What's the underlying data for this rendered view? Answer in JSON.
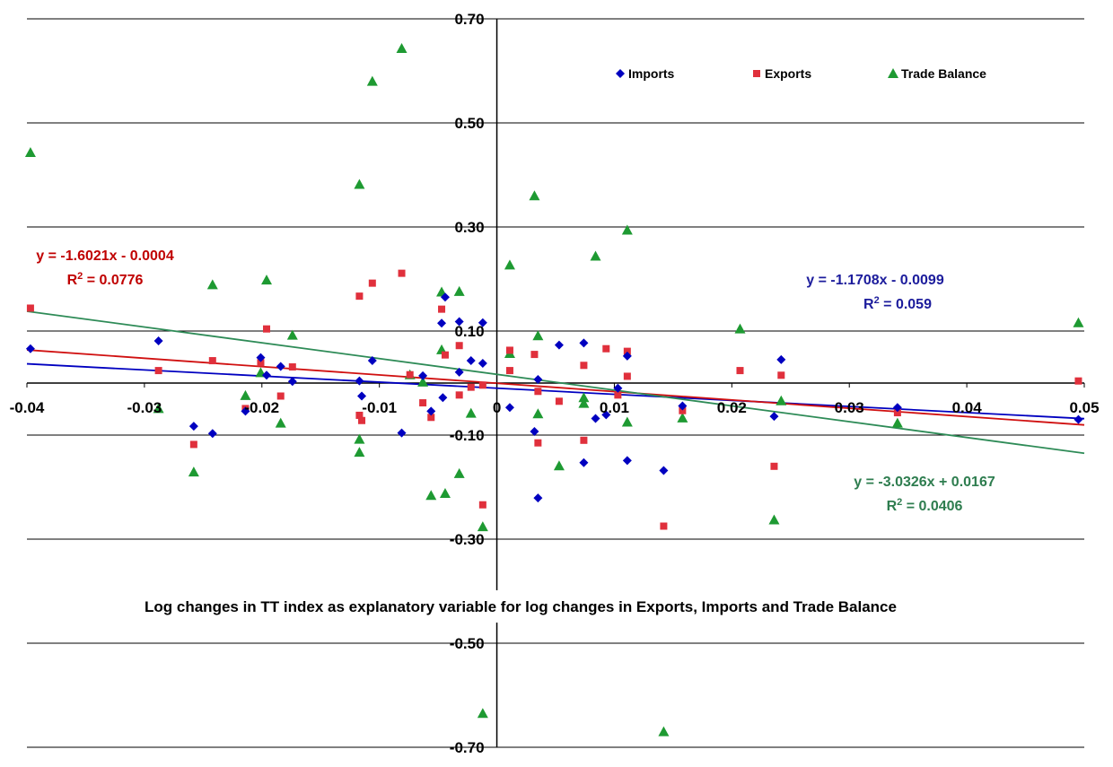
{
  "chart_data": {
    "type": "scatter",
    "title": "Log changes in TT index as explanatory variable for log changes in Exports, Imports and Trade Balance",
    "xlabel": "",
    "ylabel": "",
    "xlim": [
      -0.04,
      0.05
    ],
    "ylim": [
      -0.7,
      0.7
    ],
    "x_ticks": [
      "-0.04",
      "-0.03",
      "-0.02",
      "-0.01",
      "0",
      "0.01",
      "0.02",
      "0.03",
      "0.04",
      "0.05"
    ],
    "y_ticks": [
      "0.70",
      "0.50",
      "0.30",
      "0.10",
      "-0.10",
      "-0.30",
      "-0.50",
      "-0.70"
    ],
    "grid": "horizontal",
    "legend_position": "top-right",
    "series": [
      {
        "name": "Imports",
        "color": "#0000c0",
        "marker": "diamond",
        "points": [
          [
            -0.0397,
            0.066
          ],
          [
            -0.0288,
            0.081
          ],
          [
            -0.0258,
            -0.083
          ],
          [
            -0.0242,
            -0.097
          ],
          [
            -0.0214,
            -0.054
          ],
          [
            -0.0201,
            0.049
          ],
          [
            -0.0196,
            0.015
          ],
          [
            -0.0184,
            0.032
          ],
          [
            -0.0174,
            0.003
          ],
          [
            -0.0117,
            0.004
          ],
          [
            -0.0115,
            -0.025
          ],
          [
            -0.0106,
            0.043
          ],
          [
            -0.0081,
            -0.096
          ],
          [
            -0.0063,
            0.014
          ],
          [
            -0.0056,
            -0.054
          ],
          [
            -0.0047,
            0.115
          ],
          [
            -0.0046,
            -0.028
          ],
          [
            -0.0044,
            0.165
          ],
          [
            -0.0032,
            0.118
          ],
          [
            -0.0032,
            0.021
          ],
          [
            -0.0022,
            0.043
          ],
          [
            -0.0012,
            0.116
          ],
          [
            -0.0012,
            0.038
          ],
          [
            0.0011,
            -0.047
          ],
          [
            0.0032,
            -0.093
          ],
          [
            0.0035,
            -0.221
          ],
          [
            0.0035,
            0.007
          ],
          [
            0.0053,
            0.073
          ],
          [
            0.0074,
            0.077
          ],
          [
            0.0074,
            -0.153
          ],
          [
            0.0084,
            -0.068
          ],
          [
            0.0093,
            -0.061
          ],
          [
            0.0103,
            -0.01
          ],
          [
            0.0111,
            -0.149
          ],
          [
            0.0111,
            0.052
          ],
          [
            0.0142,
            -0.168
          ],
          [
            0.0158,
            -0.044
          ],
          [
            0.0236,
            -0.064
          ],
          [
            0.0242,
            0.045
          ],
          [
            0.0341,
            -0.047
          ],
          [
            0.0495,
            -0.07
          ]
        ],
        "trendline": {
          "equation": "y = -1.1708x - 0.0099",
          "r2_label": "R",
          "r2_sup": "2",
          "r2_value": " = 0.059",
          "slope": -1.1708,
          "intercept": -0.0099
        }
      },
      {
        "name": "Exports",
        "color": "#e0303c",
        "marker": "square",
        "points": [
          [
            -0.0397,
            0.144
          ],
          [
            -0.0288,
            0.024
          ],
          [
            -0.0258,
            -0.118
          ],
          [
            -0.0242,
            0.043
          ],
          [
            -0.0214,
            -0.049
          ],
          [
            -0.0201,
            0.039
          ],
          [
            -0.0196,
            0.104
          ],
          [
            -0.0184,
            -0.025
          ],
          [
            -0.0174,
            0.031
          ],
          [
            -0.0117,
            0.167
          ],
          [
            -0.0117,
            -0.062
          ],
          [
            -0.0115,
            -0.072
          ],
          [
            -0.0106,
            0.192
          ],
          [
            -0.0081,
            0.211
          ],
          [
            -0.0074,
            0.016
          ],
          [
            -0.0063,
            -0.038
          ],
          [
            -0.0056,
            -0.066
          ],
          [
            -0.0047,
            0.142
          ],
          [
            -0.0044,
            0.054
          ],
          [
            -0.0032,
            0.072
          ],
          [
            -0.0032,
            -0.023
          ],
          [
            -0.0022,
            -0.008
          ],
          [
            -0.0012,
            -0.234
          ],
          [
            -0.0012,
            -0.004
          ],
          [
            0.0011,
            0.063
          ],
          [
            0.0011,
            0.024
          ],
          [
            0.0032,
            0.055
          ],
          [
            0.0035,
            -0.115
          ],
          [
            0.0035,
            -0.016
          ],
          [
            0.0053,
            -0.035
          ],
          [
            0.0074,
            -0.11
          ],
          [
            0.0074,
            0.034
          ],
          [
            0.0093,
            0.066
          ],
          [
            0.0103,
            -0.023
          ],
          [
            0.0111,
            0.061
          ],
          [
            0.0111,
            0.013
          ],
          [
            0.0142,
            -0.275
          ],
          [
            0.0158,
            -0.053
          ],
          [
            0.0207,
            0.024
          ],
          [
            0.0236,
            -0.16
          ],
          [
            0.0242,
            0.015
          ],
          [
            0.0341,
            -0.057
          ],
          [
            0.0495,
            0.004
          ]
        ],
        "trendline": {
          "equation": "y = -1.6021x - 0.0004",
          "r2_label": "R",
          "r2_sup": "2",
          "r2_value": " = 0.0776",
          "slope": -1.6021,
          "intercept": -0.0004
        }
      },
      {
        "name": "Trade Balance",
        "color": "#1e9a32",
        "marker": "triangle",
        "points": [
          [
            -0.0397,
            0.443
          ],
          [
            -0.0288,
            -0.049
          ],
          [
            -0.0258,
            -0.171
          ],
          [
            -0.0242,
            0.189
          ],
          [
            -0.0214,
            -0.024
          ],
          [
            -0.0201,
            0.02
          ],
          [
            -0.0196,
            0.198
          ],
          [
            -0.0184,
            -0.077
          ],
          [
            -0.0174,
            0.092
          ],
          [
            -0.0117,
            0.382
          ],
          [
            -0.0117,
            -0.108
          ],
          [
            -0.0117,
            -0.133
          ],
          [
            -0.0106,
            0.58
          ],
          [
            -0.0081,
            0.643
          ],
          [
            -0.0074,
            0.016
          ],
          [
            -0.0063,
            0.002
          ],
          [
            -0.0056,
            -0.216
          ],
          [
            -0.0047,
            0.175
          ],
          [
            -0.0047,
            0.064
          ],
          [
            -0.0044,
            -0.212
          ],
          [
            -0.0032,
            0.176
          ],
          [
            -0.0032,
            -0.174
          ],
          [
            -0.0022,
            -0.058
          ],
          [
            -0.0012,
            -0.276
          ],
          [
            -0.0012,
            -0.635
          ],
          [
            0.0011,
            0.227
          ],
          [
            0.0011,
            0.057
          ],
          [
            0.0032,
            0.36
          ],
          [
            0.0035,
            0.091
          ],
          [
            0.0035,
            -0.059
          ],
          [
            0.0053,
            -0.159
          ],
          [
            0.0074,
            -0.028
          ],
          [
            0.0074,
            -0.039
          ],
          [
            0.0084,
            0.244
          ],
          [
            0.0111,
            0.294
          ],
          [
            0.0111,
            -0.075
          ],
          [
            0.0142,
            -0.67
          ],
          [
            0.0158,
            -0.067
          ],
          [
            0.0207,
            0.104
          ],
          [
            0.0236,
            -0.263
          ],
          [
            0.0242,
            -0.034
          ],
          [
            0.0341,
            -0.077
          ],
          [
            0.0495,
            0.116
          ]
        ],
        "trendline": {
          "equation": "y = -3.0326x + 0.0167",
          "r2_label": "R",
          "r2_sup": "2",
          "r2_value": " = 0.0406",
          "slope": -3.0326,
          "intercept": 0.0167
        }
      }
    ]
  }
}
